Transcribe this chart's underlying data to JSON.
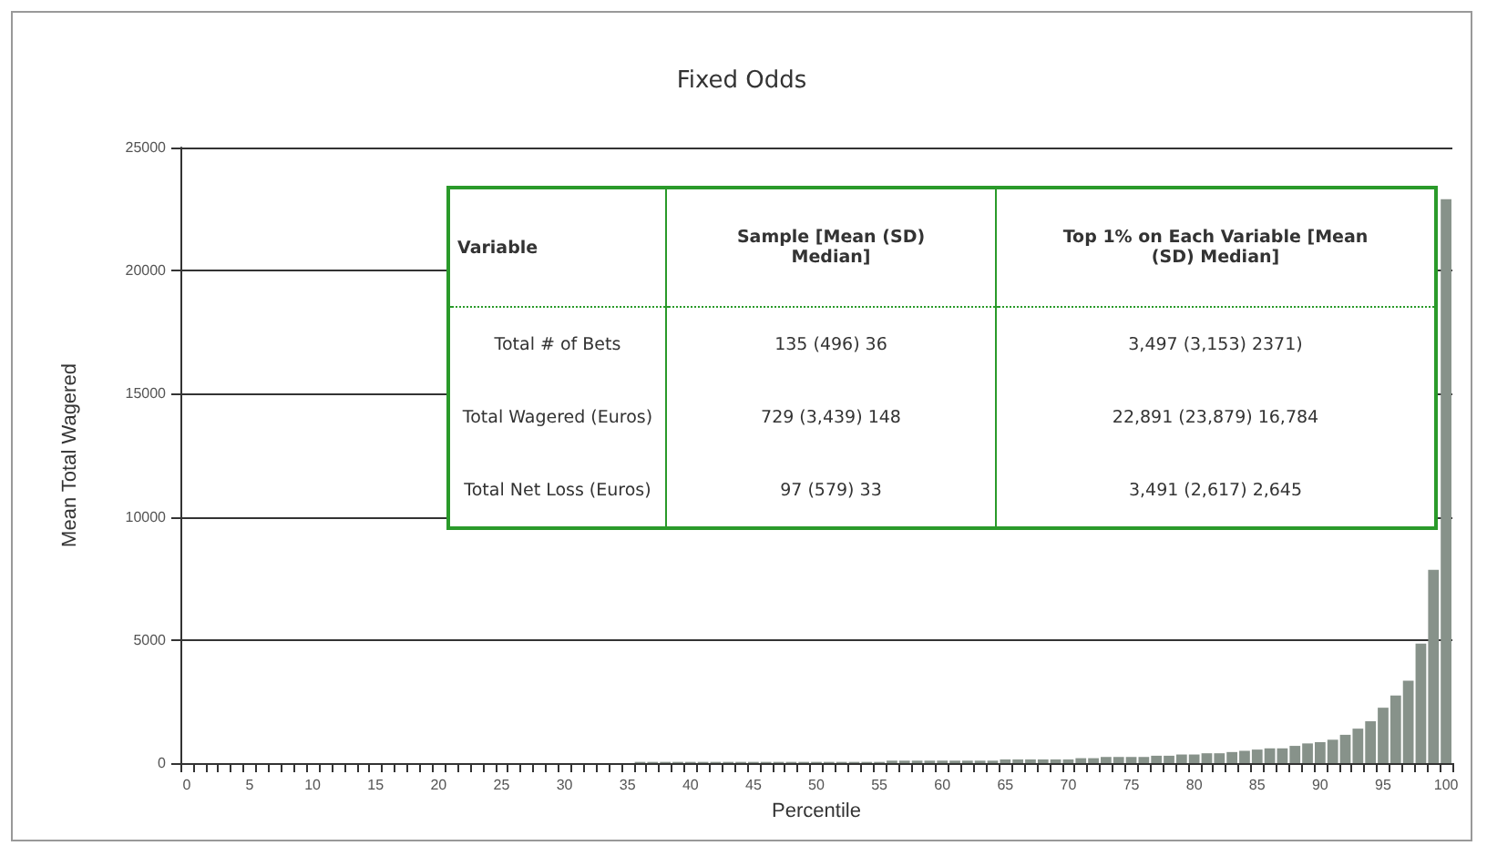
{
  "chart_data": {
    "type": "bar",
    "title": "Fixed Odds",
    "xlabel": "Percentile",
    "ylabel": "Mean Total Wagered",
    "categories": [
      "0",
      null,
      null,
      null,
      null,
      "5",
      null,
      null,
      null,
      null,
      "10",
      null,
      null,
      null,
      null,
      "15",
      null,
      null,
      null,
      null,
      "20",
      null,
      null,
      null,
      null,
      "25",
      null,
      null,
      null,
      null,
      "30",
      null,
      null,
      null,
      null,
      "35",
      null,
      null,
      null,
      null,
      "40",
      null,
      null,
      null,
      null,
      "45",
      null,
      null,
      null,
      null,
      "50",
      null,
      null,
      null,
      null,
      "55",
      null,
      null,
      null,
      null,
      "60",
      null,
      null,
      null,
      null,
      "65",
      null,
      null,
      null,
      null,
      "70",
      null,
      null,
      null,
      null,
      "75",
      null,
      null,
      null,
      null,
      "80",
      null,
      null,
      null,
      null,
      "85",
      null,
      null,
      null,
      null,
      "90",
      null,
      null,
      null,
      null,
      "95",
      null,
      null,
      null,
      null,
      "100"
    ],
    "values": [
      0,
      0,
      0,
      0,
      0,
      0,
      0,
      0,
      0,
      0,
      0,
      0,
      0,
      0,
      0,
      0,
      0,
      0,
      0,
      0,
      0,
      0,
      0,
      0,
      0,
      0,
      0,
      0,
      0,
      0,
      0,
      0,
      0,
      0,
      0,
      0,
      50,
      50,
      50,
      50,
      50,
      50,
      50,
      50,
      50,
      50,
      50,
      50,
      50,
      50,
      50,
      50,
      50,
      50,
      50,
      50,
      100,
      100,
      100,
      100,
      100,
      100,
      100,
      100,
      100,
      150,
      150,
      150,
      150,
      150,
      150,
      200,
      200,
      250,
      250,
      250,
      250,
      300,
      300,
      350,
      350,
      400,
      400,
      450,
      500,
      550,
      600,
      600,
      700,
      800,
      850,
      950,
      1150,
      1400,
      1700,
      2250,
      2750,
      3350,
      4850,
      7850,
      22900
    ],
    "color": "#87928a",
    "ylim": [
      0,
      25000
    ],
    "yticks": [
      0,
      {
        "value": 5000,
        "label": "5000"
      },
      {
        "value": 10000,
        "label": "10000"
      },
      {
        "value": 15000,
        "label": "15000"
      },
      {
        "value": 20000,
        "label": "20000"
      },
      {
        "value": 25000,
        "label": "25000"
      }
    ],
    "grid": "y",
    "annotations": [
      "Variable",
      "Sample [Mean (SD) Median]",
      "Top 1% on Each Variable [Mean (SD) Median]",
      "Total # of Bets",
      "135 (496) 36",
      "3,497 (3,153) 2371)",
      "Total Wagered (Euros)",
      "729 (3,439) 148",
      "22,891 (23,879) 16,784",
      "Total Net Loss (Euros)",
      "97 (579) 33",
      "3,491 (2,617) 2,645"
    ]
  }
}
